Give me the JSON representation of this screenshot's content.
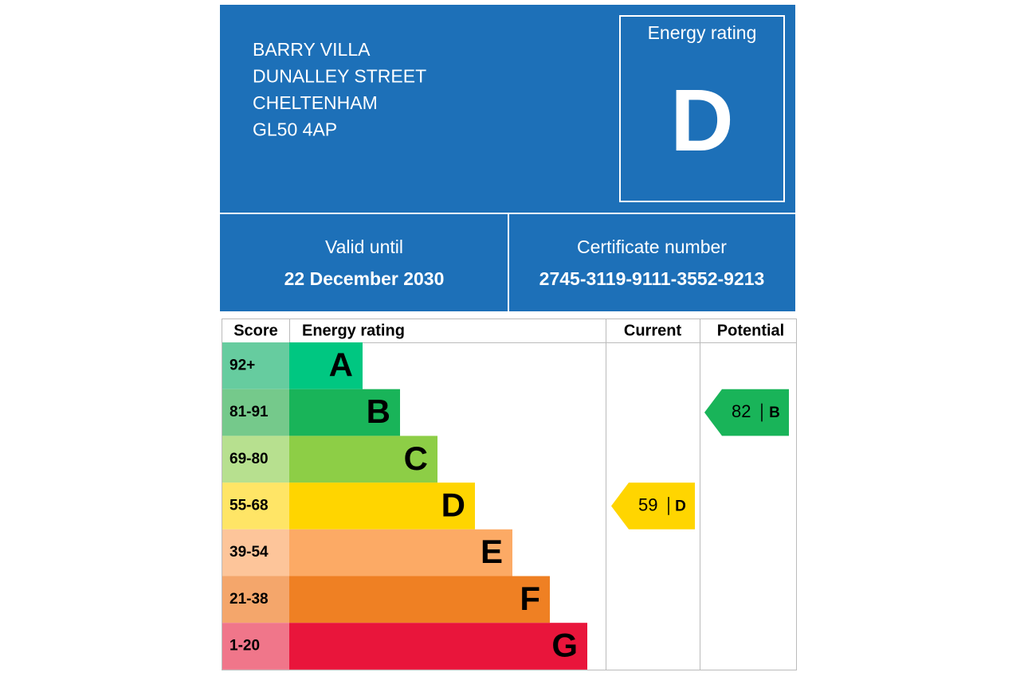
{
  "header": {
    "address": [
      "BARRY VILLA",
      "DUNALLEY STREET",
      "CHELTENHAM",
      "GL50 4AP"
    ],
    "rating_label": "Energy rating",
    "rating": "D"
  },
  "validity": {
    "label": "Valid until",
    "date": "22 December 2030"
  },
  "certificate": {
    "label": "Certificate number",
    "number": "2745-3119-9111-3552-9213"
  },
  "table": {
    "headers": [
      "Score",
      "Energy rating",
      "Current",
      "Potential"
    ],
    "bands": [
      {
        "score": "92+",
        "letter": "A",
        "color": "#00c781",
        "score_color": "#66cc9f"
      },
      {
        "score": "81-91",
        "letter": "B",
        "color": "#19b459",
        "score_color": "#75c98b"
      },
      {
        "score": "69-80",
        "letter": "C",
        "color": "#8dce46",
        "score_color": "#b7e08f"
      },
      {
        "score": "55-68",
        "letter": "D",
        "color": "#ffd500",
        "score_color": "#ffe566"
      },
      {
        "score": "39-54",
        "letter": "E",
        "color": "#fcaa65",
        "score_color": "#fdc59a"
      },
      {
        "score": "21-38",
        "letter": "F",
        "color": "#ef8023",
        "score_color": "#f4a66b"
      },
      {
        "score": "1-20",
        "letter": "G",
        "color": "#e9153b",
        "score_color": "#f0768a"
      }
    ],
    "current": {
      "score": 59,
      "letter": "D"
    },
    "potential": {
      "score": 82,
      "letter": "B"
    }
  }
}
